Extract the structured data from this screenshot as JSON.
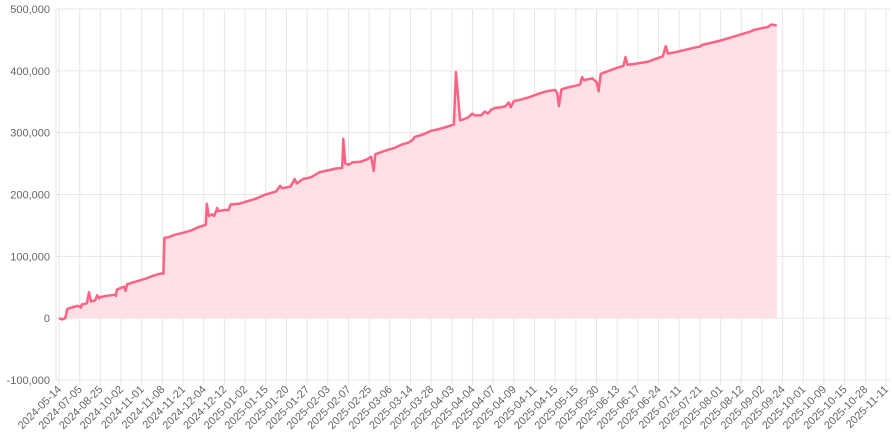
{
  "chart_data": {
    "type": "area",
    "title": "",
    "xlabel": "",
    "ylabel": "",
    "ylim": [
      -100000,
      500000
    ],
    "yticks": [
      -100000,
      0,
      100000,
      200000,
      300000,
      400000,
      500000
    ],
    "ytick_labels": [
      "-100,000",
      "0",
      "100,000",
      "200,000",
      "300,000",
      "400,000",
      "500,000"
    ],
    "grid": true,
    "legend": "none",
    "colors": {
      "line": "#ff6384",
      "fill": "#ffe0e6",
      "grid": "#e6e6e6",
      "tick_text": "#666666"
    },
    "categories": [
      "2024-05-14",
      "2024-07-05",
      "2024-08-25",
      "2024-10-02",
      "2024-11-01",
      "2024-11-08",
      "2024-11-21",
      "2024-12-04",
      "2024-12-12",
      "2025-01-02",
      "2025-01-15",
      "2025-01-20",
      "2025-01-27",
      "2025-02-03",
      "2025-02-07",
      "2025-02-25",
      "2025-03-06",
      "2025-03-14",
      "2025-03-28",
      "2025-04-03",
      "2025-04-04",
      "2025-04-07",
      "2025-04-09",
      "2025-04-11",
      "2025-04-15",
      "2025-05-15",
      "2025-05-30",
      "2025-06-13",
      "2025-06-17",
      "2025-06-24",
      "2025-07-11",
      "2025-07-21",
      "2025-08-01",
      "2025-08-12",
      "2025-09-02",
      "2025-09-24",
      "2025-10-01",
      "2025-10-09",
      "2025-10-15",
      "2025-10-28",
      "2025-11-11"
    ],
    "series": [
      {
        "name": "",
        "points": [
          [
            0,
            0
          ],
          [
            0.15,
            -2000
          ],
          [
            0.3,
            0
          ],
          [
            0.4,
            15000
          ],
          [
            0.7,
            18000
          ],
          [
            0.9,
            20000
          ],
          [
            1.0,
            19000
          ],
          [
            1.05,
            17000
          ],
          [
            1.1,
            22000
          ],
          [
            1.35,
            24000
          ],
          [
            1.45,
            42000
          ],
          [
            1.55,
            27000
          ],
          [
            1.65,
            28000
          ],
          [
            1.75,
            29000
          ],
          [
            1.85,
            37000
          ],
          [
            1.95,
            32000
          ],
          [
            2.0,
            34000
          ],
          [
            2.3,
            36000
          ],
          [
            2.7,
            38000
          ],
          [
            2.75,
            36000
          ],
          [
            2.8,
            46000
          ],
          [
            3.0,
            49000
          ],
          [
            3.15,
            51000
          ],
          [
            3.22,
            44000
          ],
          [
            3.3,
            55000
          ],
          [
            3.6,
            58000
          ],
          [
            3.9,
            61000
          ],
          [
            4.2,
            64000
          ],
          [
            4.5,
            68000
          ],
          [
            4.9,
            72000
          ],
          [
            5.05,
            72000
          ],
          [
            5.1,
            130000
          ],
          [
            5.3,
            131000
          ],
          [
            5.6,
            135000
          ],
          [
            6.0,
            138000
          ],
          [
            6.4,
            142000
          ],
          [
            6.8,
            148000
          ],
          [
            7.1,
            151000
          ],
          [
            7.15,
            185000
          ],
          [
            7.25,
            165000
          ],
          [
            7.4,
            168000
          ],
          [
            7.5,
            165000
          ],
          [
            7.65,
            178000
          ],
          [
            7.7,
            173000
          ],
          [
            8.0,
            175000
          ],
          [
            8.2,
            175000
          ],
          [
            8.3,
            184000
          ],
          [
            8.7,
            185000
          ],
          [
            9.0,
            188000
          ],
          [
            9.5,
            193000
          ],
          [
            10.0,
            200000
          ],
          [
            10.5,
            205000
          ],
          [
            10.7,
            214000
          ],
          [
            10.8,
            210000
          ],
          [
            11.2,
            213000
          ],
          [
            11.4,
            225000
          ],
          [
            11.5,
            218000
          ],
          [
            11.8,
            225000
          ],
          [
            12.2,
            228000
          ],
          [
            12.6,
            236000
          ],
          [
            13.0,
            239000
          ],
          [
            13.4,
            242000
          ],
          [
            13.7,
            243000
          ],
          [
            13.75,
            290000
          ],
          [
            13.85,
            250000
          ],
          [
            14.0,
            248000
          ],
          [
            14.2,
            252000
          ],
          [
            14.6,
            253000
          ],
          [
            14.9,
            257000
          ],
          [
            15.0,
            259000
          ],
          [
            15.1,
            261000
          ],
          [
            15.22,
            238000
          ],
          [
            15.3,
            265000
          ],
          [
            15.7,
            270000
          ],
          [
            16.2,
            275000
          ],
          [
            16.6,
            281000
          ],
          [
            16.9,
            284000
          ],
          [
            17.1,
            288000
          ],
          [
            17.2,
            293000
          ],
          [
            17.6,
            297000
          ],
          [
            18.0,
            303000
          ],
          [
            18.4,
            306000
          ],
          [
            18.8,
            310000
          ],
          [
            19.1,
            313000
          ],
          [
            19.2,
            398000
          ],
          [
            19.4,
            320000
          ],
          [
            19.6,
            322000
          ],
          [
            19.8,
            325000
          ],
          [
            20.0,
            331000
          ],
          [
            20.1,
            328000
          ],
          [
            20.4,
            328000
          ],
          [
            20.6,
            334000
          ],
          [
            20.75,
            331000
          ],
          [
            20.9,
            337000
          ],
          [
            21.1,
            340000
          ],
          [
            21.4,
            341000
          ],
          [
            21.6,
            343000
          ],
          [
            21.75,
            349000
          ],
          [
            21.85,
            341000
          ],
          [
            22.0,
            351000
          ],
          [
            22.4,
            354000
          ],
          [
            22.8,
            358000
          ],
          [
            23.2,
            363000
          ],
          [
            23.6,
            367000
          ],
          [
            24.0,
            369000
          ],
          [
            24.1,
            364000
          ],
          [
            24.18,
            343000
          ],
          [
            24.3,
            370000
          ],
          [
            24.6,
            373000
          ],
          [
            25.0,
            376000
          ],
          [
            25.2,
            378000
          ],
          [
            25.3,
            390000
          ],
          [
            25.4,
            385000
          ],
          [
            25.8,
            388000
          ],
          [
            26.0,
            382000
          ],
          [
            26.1,
            367000
          ],
          [
            26.2,
            395000
          ],
          [
            26.6,
            400000
          ],
          [
            27.0,
            405000
          ],
          [
            27.3,
            408000
          ],
          [
            27.4,
            422000
          ],
          [
            27.5,
            410000
          ],
          [
            27.8,
            411000
          ],
          [
            28.0,
            412000
          ],
          [
            28.5,
            415000
          ],
          [
            29.0,
            421000
          ],
          [
            29.2,
            423000
          ],
          [
            29.35,
            440000
          ],
          [
            29.45,
            428000
          ],
          [
            29.8,
            430000
          ],
          [
            30.3,
            434000
          ],
          [
            30.8,
            438000
          ],
          [
            31.0,
            439000
          ],
          [
            31.1,
            442000
          ],
          [
            31.5,
            445000
          ],
          [
            32.0,
            449000
          ],
          [
            32.4,
            453000
          ],
          [
            32.8,
            457000
          ],
          [
            33.2,
            461000
          ],
          [
            33.4,
            463000
          ],
          [
            33.6,
            466000
          ],
          [
            34.0,
            469000
          ],
          [
            34.3,
            471000
          ],
          [
            34.45,
            475000
          ],
          [
            34.6,
            474000
          ],
          [
            34.72,
            473000
          ]
        ]
      }
    ]
  }
}
